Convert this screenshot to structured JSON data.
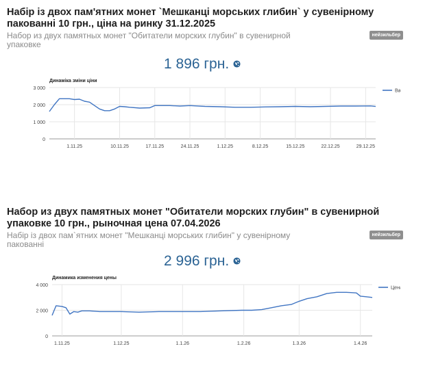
{
  "cards": [
    {
      "title": "Набір із двох пам'ятних монет `Мешканці морських глибин` у сувенірному пакованні 10 грн., ціна на ринку 31.12.2025",
      "subtitle": "Набор из двух памятных монет \"Обитатели морских глубин\" в сувенирной упаковке",
      "badge": "нейзильбер",
      "price": "1 896 грн.",
      "globe_icon": "globe-icon"
    },
    {
      "title": "Набор из двух памятных монет \"Обитатели морских глубин\" в сувенирной упаковке 10 грн., рыночная цена 07.04.2026",
      "subtitle": "Набір із двох пам`ятних монет \"Мешканці морських глибин\" у сувенірному пакованні",
      "badge": "нейзильбер",
      "price": "2 996 грн.",
      "globe_icon": "globe-icon"
    }
  ],
  "colors": {
    "line": "#3f74c2",
    "price": "#2b6394",
    "badge": "#8f8f8f",
    "grid": "#e6e6e6"
  },
  "chart_data": [
    {
      "type": "line",
      "title": "Динаміка зміни ціни",
      "xlabel": "",
      "ylabel": "",
      "ylim": [
        0,
        3000
      ],
      "yticks": [
        "0",
        "1 000",
        "2 000",
        "3 000"
      ],
      "x_labels": [
        "1.11.25",
        "10.11.25",
        "17.11.25",
        "24.11.25",
        "1.12.25",
        "8.12.25",
        "15.12.25",
        "22.12.25",
        "29.12.25"
      ],
      "legend_position": "right",
      "series": [
        {
          "name": "Варті...",
          "x": [
            "2025-10-27",
            "2025-10-28",
            "2025-10-29",
            "2025-10-30",
            "2025-10-31",
            "2025-11-01",
            "2025-11-02",
            "2025-11-03",
            "2025-11-04",
            "2025-11-05",
            "2025-11-06",
            "2025-11-07",
            "2025-11-08",
            "2025-11-09",
            "2025-11-10",
            "2025-11-11",
            "2025-11-12",
            "2025-11-14",
            "2025-11-16",
            "2025-11-17",
            "2025-11-18",
            "2025-11-20",
            "2025-11-22",
            "2025-11-24",
            "2025-11-27",
            "2025-11-30",
            "2025-12-03",
            "2025-12-06",
            "2025-12-09",
            "2025-12-12",
            "2025-12-15",
            "2025-12-18",
            "2025-12-21",
            "2025-12-24",
            "2025-12-27",
            "2025-12-30",
            "2025-12-31"
          ],
          "y": [
            1600,
            2000,
            2350,
            2350,
            2350,
            2300,
            2320,
            2200,
            2150,
            1950,
            1750,
            1650,
            1650,
            1750,
            1900,
            1880,
            1850,
            1800,
            1820,
            1950,
            1950,
            1950,
            1920,
            1950,
            1900,
            1880,
            1850,
            1850,
            1870,
            1880,
            1900,
            1880,
            1900,
            1920,
            1920,
            1930,
            1896
          ]
        }
      ]
    },
    {
      "type": "line",
      "title": "Динамика изменения цены",
      "xlabel": "",
      "ylabel": "",
      "ylim": [
        0,
        4000
      ],
      "yticks": [
        "0",
        "2 000",
        "4 000"
      ],
      "x_labels": [
        "1.11.25",
        "1.12.25",
        "1.1.26",
        "1.2.26",
        "1.3.26",
        "1.4.26"
      ],
      "legend_position": "right",
      "series": [
        {
          "name": "Цена",
          "x": [
            "2025-10-27",
            "2025-10-29",
            "2025-11-01",
            "2025-11-03",
            "2025-11-05",
            "2025-11-07",
            "2025-11-09",
            "2025-11-11",
            "2025-11-15",
            "2025-11-20",
            "2025-11-25",
            "2025-12-01",
            "2025-12-10",
            "2025-12-20",
            "2025-12-31",
            "2026-01-10",
            "2026-01-20",
            "2026-01-31",
            "2026-02-05",
            "2026-02-10",
            "2026-02-15",
            "2026-02-20",
            "2026-02-25",
            "2026-03-01",
            "2026-03-05",
            "2026-03-10",
            "2026-03-15",
            "2026-03-20",
            "2026-03-25",
            "2026-03-30",
            "2026-04-01",
            "2026-04-04",
            "2026-04-07"
          ],
          "y": [
            1600,
            2350,
            2300,
            2200,
            1700,
            1900,
            1850,
            1950,
            1950,
            1900,
            1900,
            1900,
            1850,
            1900,
            1900,
            1900,
            1950,
            2000,
            2000,
            2050,
            2200,
            2350,
            2450,
            2700,
            2900,
            3050,
            3300,
            3400,
            3400,
            3350,
            3100,
            3050,
            2996
          ]
        }
      ]
    }
  ]
}
